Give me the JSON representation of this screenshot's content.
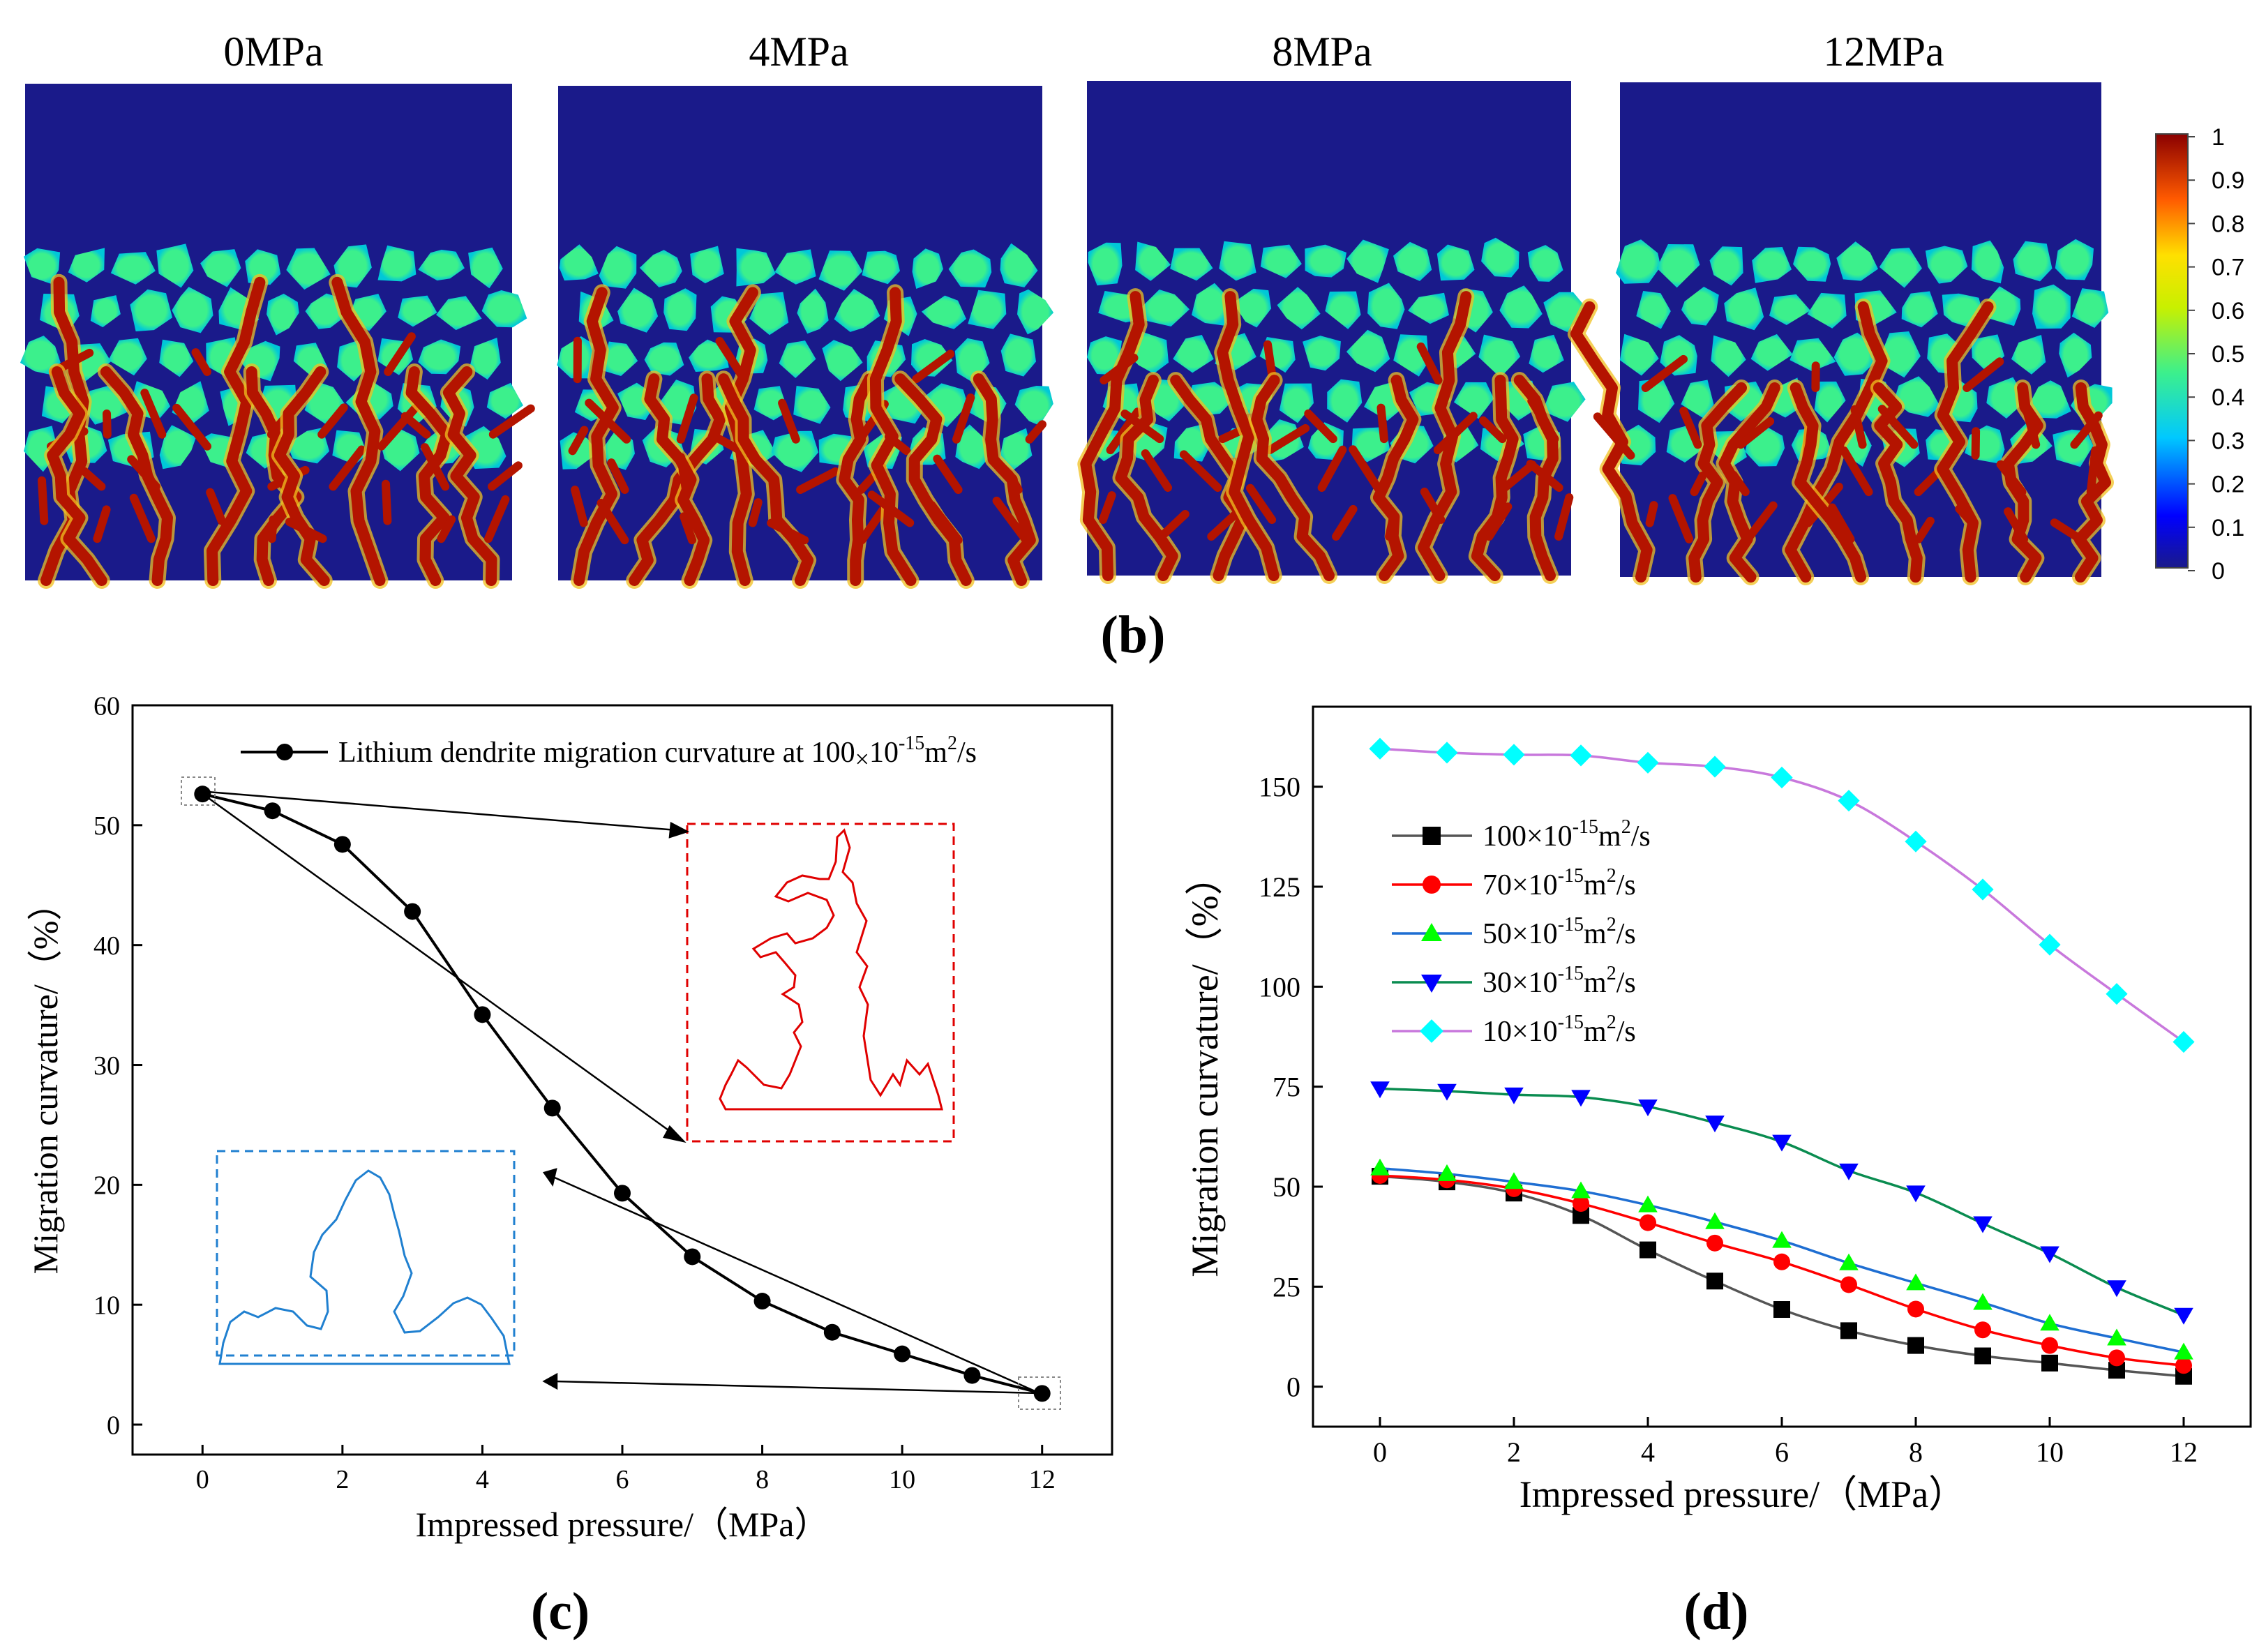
{
  "panel_b": {
    "label": "(b)",
    "titles": [
      "0MPa",
      "4MPa",
      "8MPa",
      "12MPa"
    ],
    "colorbar_ticks": [
      "1",
      "0.9",
      "0.8",
      "0.7",
      "0.6",
      "0.5",
      "0.4",
      "0.3",
      "0.2",
      "0.1",
      "0"
    ],
    "colors": {
      "electrolyte": "#1a1a8a",
      "particle": "#3cf08c",
      "dendrite": "#b41400",
      "dendrite_edge": "#f0c020"
    }
  },
  "chart_data": [
    {
      "id": "c",
      "panel_label": "(c)",
      "type": "line",
      "xlabel": "Impressed pressure/（MPa）",
      "ylabel": "Migration curvature/（%）",
      "xlim": [
        -1,
        13
      ],
      "ylim": [
        -2.5,
        60
      ],
      "xticks": [
        0,
        2,
        4,
        6,
        8,
        10,
        12
      ],
      "yticks": [
        0,
        10,
        20,
        30,
        40,
        50,
        60
      ],
      "legend": {
        "position": "top",
        "label": "Lithium dendrite migration curvature at 100×10-15m2/s",
        "base": "Lithium dendrite migration curvature at 100",
        "times": "×",
        "mant": "10",
        "exp": "-15",
        "unit": "m",
        "sq": "2",
        "tail": "/s"
      },
      "series": [
        {
          "name": "Lithium dendrite migration curvature",
          "color": "#000000",
          "marker": "circle",
          "x": [
            0,
            1,
            2,
            3,
            4,
            5,
            6,
            7,
            8,
            9,
            10,
            11,
            12
          ],
          "y": [
            52.6,
            51.2,
            48.4,
            42.8,
            34.2,
            26.4,
            19.3,
            14.0,
            10.3,
            7.7,
            5.9,
            4.1,
            2.6
          ]
        }
      ],
      "insets": [
        "red dashed box: 0MPa dendrite outline",
        "blue dashed box: 12MPa dendrite outline"
      ]
    },
    {
      "id": "d",
      "panel_label": "(d)",
      "type": "line",
      "xlabel": "Impressed pressure/（MPa）",
      "ylabel": "Migration curvature/（%）",
      "xlim": [
        -1,
        13
      ],
      "ylim": [
        -10,
        170
      ],
      "xticks": [
        0,
        2,
        4,
        6,
        8,
        10,
        12
      ],
      "yticks": [
        0,
        25,
        50,
        75,
        100,
        125,
        150
      ],
      "legend_position": "left",
      "series": [
        {
          "name": "100×10-15m2/s",
          "mant": "100×10",
          "exp": "-15",
          "unit": "m",
          "sq": "2",
          "tail": "/s",
          "line": "#555555",
          "fill": "#000000",
          "marker": "square",
          "x": [
            0,
            1,
            2,
            3,
            4,
            5,
            6,
            7,
            8,
            9,
            10,
            11,
            12
          ],
          "y": [
            52.6,
            51.2,
            48.4,
            42.8,
            34.2,
            26.4,
            19.3,
            14.0,
            10.3,
            7.7,
            5.9,
            4.1,
            2.6
          ]
        },
        {
          "name": "70×10-15m2/s",
          "mant": "70×10",
          "exp": "-15",
          "unit": "m",
          "sq": "2",
          "tail": "/s",
          "line": "#ff0000",
          "fill": "#ff0000",
          "marker": "circle",
          "x": [
            0,
            1,
            2,
            3,
            4,
            5,
            6,
            7,
            8,
            9,
            10,
            11,
            12
          ],
          "y": [
            52.8,
            51.7,
            49.5,
            45.8,
            41.0,
            35.9,
            31.2,
            25.5,
            19.4,
            14.2,
            10.3,
            7.2,
            5.3
          ]
        },
        {
          "name": "50×10-15m2/s",
          "mant": "50×10",
          "exp": "-15",
          "unit": "m",
          "sq": "2",
          "tail": "/s",
          "line": "#1e6ed2",
          "fill": "#00ff00",
          "marker": "triangle-up",
          "x": [
            0,
            1,
            2,
            3,
            4,
            5,
            6,
            7,
            8,
            9,
            10,
            11,
            12
          ],
          "y": [
            54.6,
            53.2,
            51.2,
            48.9,
            45.4,
            41.2,
            36.5,
            30.9,
            25.9,
            21.0,
            15.8,
            12.1,
            8.6
          ]
        },
        {
          "name": "30×10-15m2/s",
          "mant": "30×10",
          "exp": "-15",
          "unit": "m",
          "sq": "2",
          "tail": "/s",
          "line": "#0a8c50",
          "fill": "#0000ff",
          "marker": "triangle-down",
          "x": [
            0,
            1,
            2,
            3,
            4,
            5,
            6,
            7,
            8,
            9,
            10,
            11,
            12
          ],
          "y": [
            74.5,
            73.9,
            73.0,
            72.4,
            70.0,
            66.0,
            61.2,
            54.0,
            48.5,
            40.8,
            33.3,
            24.8,
            17.9
          ]
        },
        {
          "name": "10×10-15m2/s",
          "mant": "10×10",
          "exp": "-15",
          "unit": "m",
          "sq": "2",
          "tail": "/s",
          "line": "#c878dc",
          "fill": "#00ffff",
          "marker": "diamond",
          "x": [
            0,
            1,
            2,
            3,
            4,
            5,
            6,
            7,
            8,
            9,
            10,
            11,
            12
          ],
          "y": [
            159.5,
            158.5,
            158.0,
            157.8,
            156.0,
            155.0,
            152.3,
            146.5,
            136.3,
            124.3,
            110.5,
            98.2,
            86.2
          ]
        }
      ]
    }
  ]
}
